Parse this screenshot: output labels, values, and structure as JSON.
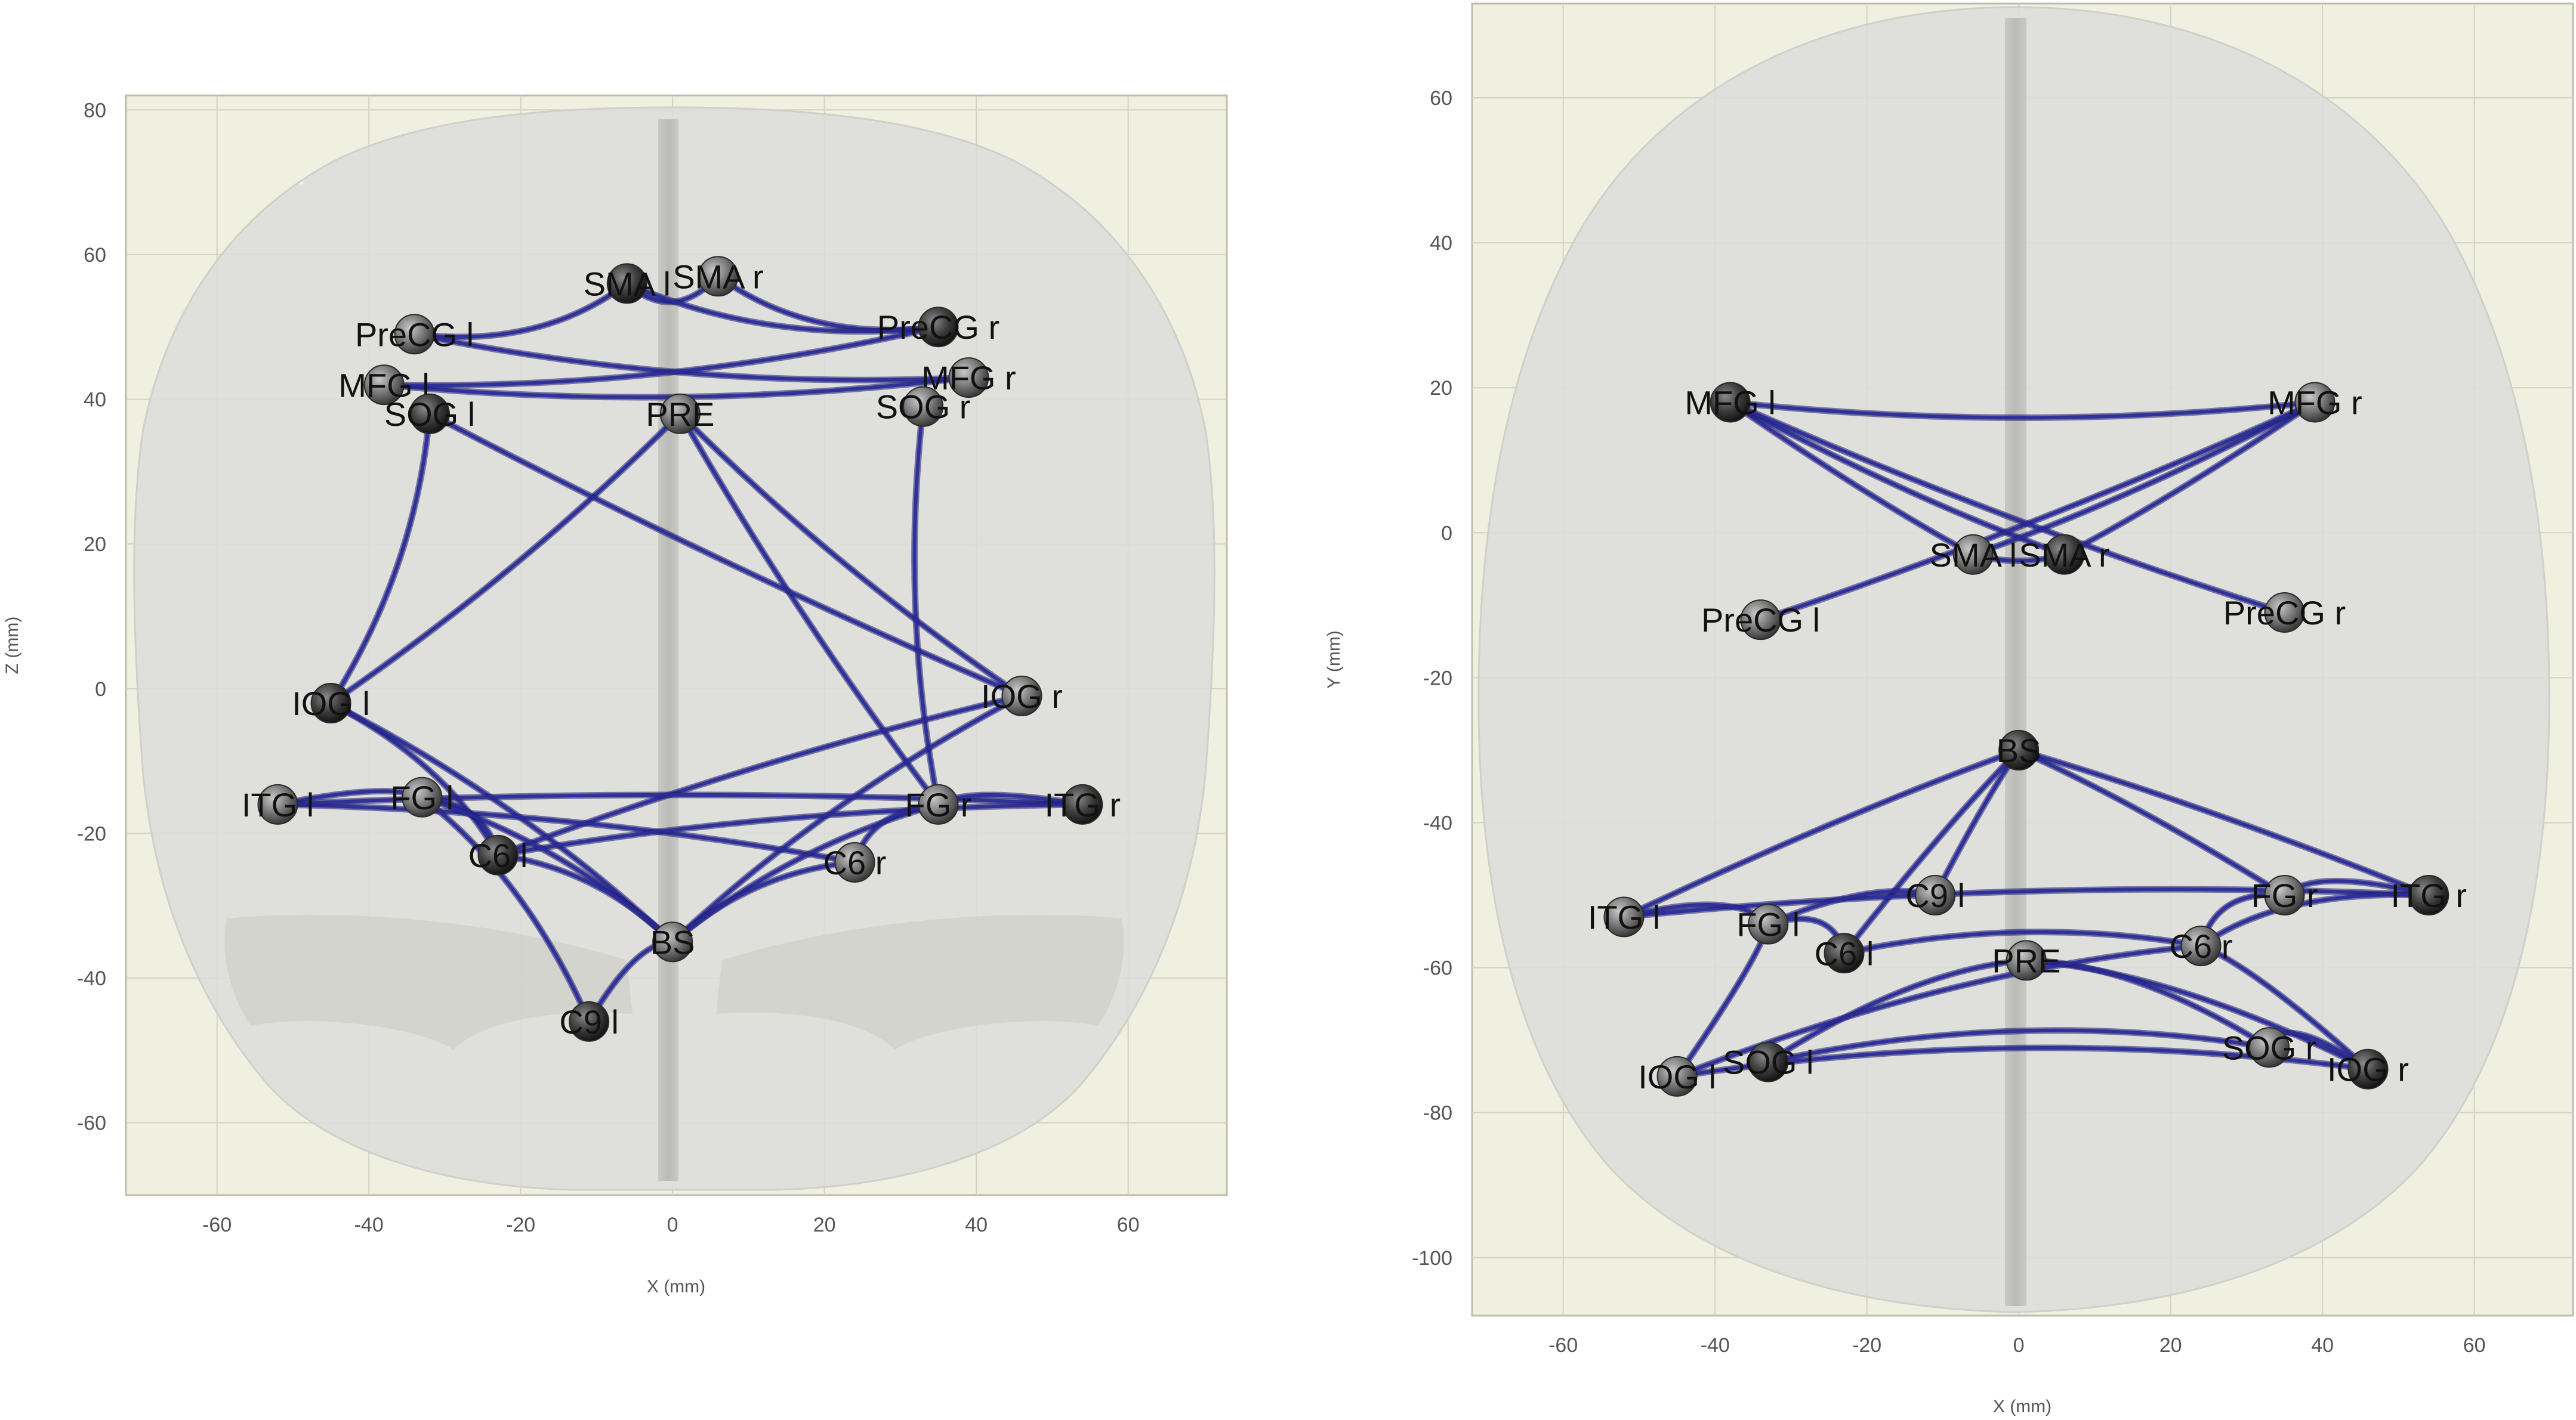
{
  "colors": {
    "plot_background": "#f0f0e0",
    "grid": "#d2d2c4",
    "brain": "#dcdcd9",
    "midline": "#c8c8c4",
    "fiber": "#2a2a9a",
    "node": "#6f6f6f",
    "label": "#111111"
  },
  "chart_data": [
    {
      "type": "scatter",
      "view": "coronal",
      "xlabel": "X (mm)",
      "ylabel": "Z (mm)",
      "xlim": [
        -72,
        73
      ],
      "ylim": [
        -70,
        82
      ],
      "xticks": [
        -60,
        -40,
        -20,
        0,
        20,
        40,
        60
      ],
      "yticks": [
        -60,
        -40,
        -20,
        0,
        20,
        40,
        60,
        80
      ],
      "grid": true,
      "nodes": [
        {
          "id": "SMA_l",
          "label": "SMA l",
          "x": -6,
          "y": 56
        },
        {
          "id": "SMA_r",
          "label": "SMA r",
          "x": 6,
          "y": 57
        },
        {
          "id": "PreCG_l",
          "label": "PreCG l",
          "x": -34,
          "y": 49
        },
        {
          "id": "PreCG_r",
          "label": "PreCG r",
          "x": 35,
          "y": 50
        },
        {
          "id": "MFG_l",
          "label": "MFG l",
          "x": -38,
          "y": 42
        },
        {
          "id": "MFG_r",
          "label": "MFG r",
          "x": 39,
          "y": 43
        },
        {
          "id": "SOG_l",
          "label": "SOG l",
          "x": -32,
          "y": 38
        },
        {
          "id": "SOG_r",
          "label": "SOG r",
          "x": 33,
          "y": 39
        },
        {
          "id": "PRE",
          "label": "PRE",
          "x": 1,
          "y": 38
        },
        {
          "id": "IOG_l",
          "label": "IOG l",
          "x": -45,
          "y": -2
        },
        {
          "id": "IOG_r",
          "label": "IOG r",
          "x": 46,
          "y": -1
        },
        {
          "id": "ITG_l",
          "label": "ITG l",
          "x": -52,
          "y": -16
        },
        {
          "id": "ITG_r",
          "label": "ITG r",
          "x": 54,
          "y": -16
        },
        {
          "id": "FG_l",
          "label": "FG l",
          "x": -33,
          "y": -15
        },
        {
          "id": "FG_r",
          "label": "FG r",
          "x": 35,
          "y": -16
        },
        {
          "id": "C6_l",
          "label": "C6 l",
          "x": -23,
          "y": -23
        },
        {
          "id": "C6_r",
          "label": "C6 r",
          "x": 24,
          "y": -24
        },
        {
          "id": "BS",
          "label": "BS",
          "x": 0,
          "y": -35
        },
        {
          "id": "C9_l",
          "label": "C9 l",
          "x": -11,
          "y": -46
        }
      ],
      "edges": [
        [
          "SMA_l",
          "SMA_r"
        ],
        [
          "SMA_l",
          "PreCG_l"
        ],
        [
          "SMA_r",
          "PreCG_r"
        ],
        [
          "SMA_l",
          "PreCG_r"
        ],
        [
          "MFG_l",
          "MFG_r"
        ],
        [
          "PreCG_l",
          "MFG_r"
        ],
        [
          "PreCG_r",
          "MFG_l"
        ],
        [
          "PRE",
          "IOG_l"
        ],
        [
          "PRE",
          "IOG_r"
        ],
        [
          "PRE",
          "FG_r"
        ],
        [
          "SOG_l",
          "IOG_l"
        ],
        [
          "SOG_l",
          "IOG_r"
        ],
        [
          "SOG_r",
          "FG_r"
        ],
        [
          "IOG_l",
          "C6_l"
        ],
        [
          "IOG_l",
          "BS"
        ],
        [
          "IOG_r",
          "C6_l"
        ],
        [
          "IOG_r",
          "BS"
        ],
        [
          "ITG_l",
          "FG_l"
        ],
        [
          "ITG_l",
          "C6_r"
        ],
        [
          "ITG_l",
          "ITG_r"
        ],
        [
          "ITG_r",
          "FG_r"
        ],
        [
          "ITG_r",
          "C6_l"
        ],
        [
          "FG_l",
          "C6_l"
        ],
        [
          "FG_l",
          "BS"
        ],
        [
          "FG_r",
          "BS"
        ],
        [
          "FG_r",
          "C6_r"
        ],
        [
          "C6_l",
          "BS"
        ],
        [
          "C6_r",
          "BS"
        ],
        [
          "BS",
          "C9_l"
        ],
        [
          "C9_l",
          "FG_l"
        ]
      ]
    },
    {
      "type": "scatter",
      "view": "axial",
      "xlabel": "X (mm)",
      "ylabel": "Y (mm)",
      "xlim": [
        -72,
        73
      ],
      "ylim": [
        -108,
        73
      ],
      "xticks": [
        -60,
        -40,
        -20,
        0,
        20,
        40,
        60
      ],
      "yticks": [
        -100,
        -80,
        -60,
        -40,
        -20,
        0,
        20,
        40,
        60
      ],
      "grid": true,
      "nodes": [
        {
          "id": "MFG_l",
          "label": "MFG l",
          "x": -38,
          "y": 18
        },
        {
          "id": "MFG_r",
          "label": "MFG r",
          "x": 39,
          "y": 18
        },
        {
          "id": "SMA_l",
          "label": "SMA l",
          "x": -6,
          "y": -3
        },
        {
          "id": "SMA_r",
          "label": "SMA r",
          "x": 6,
          "y": -3
        },
        {
          "id": "PreCG_l",
          "label": "PreCG l",
          "x": -34,
          "y": -12
        },
        {
          "id": "PreCG_r",
          "label": "PreCG r",
          "x": 35,
          "y": -11
        },
        {
          "id": "BS",
          "label": "BS",
          "x": 0,
          "y": -30
        },
        {
          "id": "C9_l",
          "label": "C9 l",
          "x": -11,
          "y": -50
        },
        {
          "id": "ITG_l",
          "label": "ITG l",
          "x": -52,
          "y": -53
        },
        {
          "id": "ITG_r",
          "label": "ITG r",
          "x": 54,
          "y": -50
        },
        {
          "id": "FG_l",
          "label": "FG l",
          "x": -33,
          "y": -54
        },
        {
          "id": "FG_r",
          "label": "FG r",
          "x": 35,
          "y": -50
        },
        {
          "id": "C6_l",
          "label": "C6 l",
          "x": -23,
          "y": -58
        },
        {
          "id": "C6_r",
          "label": "C6 r",
          "x": 24,
          "y": -57
        },
        {
          "id": "PRE",
          "label": "PRE",
          "x": 1,
          "y": -59
        },
        {
          "id": "SOG_l",
          "label": "SOG l",
          "x": -33,
          "y": -73
        },
        {
          "id": "SOG_r",
          "label": "SOG r",
          "x": 33,
          "y": -71
        },
        {
          "id": "IOG_l",
          "label": "IOG l",
          "x": -45,
          "y": -75
        },
        {
          "id": "IOG_r",
          "label": "IOG r",
          "x": 46,
          "y": -74
        }
      ],
      "edges": [
        [
          "MFG_l",
          "MFG_r"
        ],
        [
          "MFG_l",
          "SMA_l"
        ],
        [
          "MFG_l",
          "SMA_r"
        ],
        [
          "MFG_r",
          "SMA_r"
        ],
        [
          "MFG_r",
          "SMA_l"
        ],
        [
          "PreCG_l",
          "MFG_r"
        ],
        [
          "PreCG_r",
          "MFG_l"
        ],
        [
          "SMA_l",
          "SMA_r"
        ],
        [
          "BS",
          "ITG_l"
        ],
        [
          "BS",
          "ITG_r"
        ],
        [
          "BS",
          "C9_l"
        ],
        [
          "BS",
          "FG_r"
        ],
        [
          "BS",
          "C6_l"
        ],
        [
          "ITG_l",
          "ITG_r"
        ],
        [
          "ITG_l",
          "FG_l"
        ],
        [
          "FG_l",
          "C6_l"
        ],
        [
          "C9_l",
          "FG_l"
        ],
        [
          "ITG_r",
          "FG_r"
        ],
        [
          "ITG_r",
          "C6_r"
        ],
        [
          "FG_r",
          "C6_r"
        ],
        [
          "C6_l",
          "C6_r"
        ],
        [
          "PRE",
          "SOG_l"
        ],
        [
          "PRE",
          "IOG_r"
        ],
        [
          "PRE",
          "SOG_r"
        ],
        [
          "SOG_l",
          "SOG_r"
        ],
        [
          "IOG_l",
          "IOG_r"
        ],
        [
          "IOG_l",
          "C6_r"
        ],
        [
          "IOG_l",
          "FG_l"
        ],
        [
          "IOG_r",
          "C6_r"
        ],
        [
          "SOG_r",
          "IOG_r"
        ]
      ]
    }
  ]
}
